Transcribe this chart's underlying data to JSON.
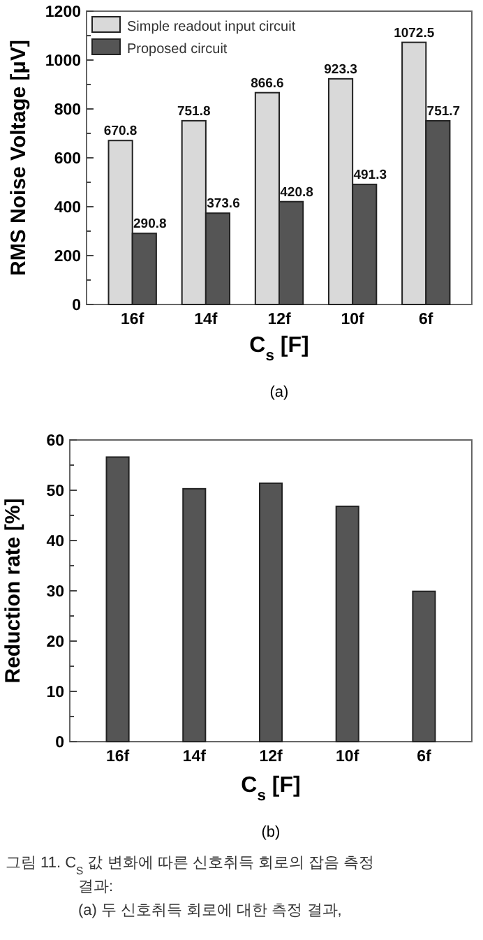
{
  "chart_data": [
    {
      "type": "bar",
      "xlabel": "C$_{s}$ [F]",
      "ylabel": "RMS Noise Voltage [μV]",
      "categories": [
        "16f",
        "14f",
        "12f",
        "10f",
        "6f"
      ],
      "series": [
        {
          "name": "Simple readout input circuit",
          "color": "#d9d9d9",
          "values": [
            670.8,
            751.8,
            866.6,
            923.3,
            1072.5
          ]
        },
        {
          "name": "Proposed circuit",
          "color": "#555555",
          "values": [
            290.8,
            373.6,
            420.8,
            491.3,
            751.7
          ]
        }
      ],
      "ylim": [
        0,
        1200
      ],
      "yticks": [
        0,
        {
          "value": 100,
          "label": null
        },
        200,
        {
          "value": 300,
          "label": null
        },
        400,
        {
          "value": 500,
          "label": null
        },
        600,
        {
          "value": 700,
          "label": null
        },
        800,
        {
          "value": 900,
          "label": null
        },
        1000,
        {
          "value": 1100,
          "label": null
        },
        1200
      ],
      "data_labels": true,
      "legend": "top left",
      "annotations": [
        "(a)"
      ]
    },
    {
      "type": "bar",
      "xlabel": "C$_{s}$ [F]",
      "ylabel": "Reduction rate [%]",
      "categories": [
        "16f",
        "14f",
        "12f",
        "10f",
        "6f"
      ],
      "values": [
        56.6,
        50.3,
        51.4,
        46.8,
        29.9
      ],
      "color": "#555555",
      "ylim": [
        0,
        60
      ],
      "yticks": [
        0,
        {
          "value": 5,
          "label": null
        },
        10,
        {
          "value": 15,
          "label": null
        },
        20,
        {
          "value": 25,
          "label": null
        },
        30,
        {
          "value": 35,
          "label": null
        },
        40,
        {
          "value": 45,
          "label": null
        },
        50,
        {
          "value": 55,
          "label": null
        },
        60
      ],
      "annotations": [
        "(b)",
        "그림 11. C$_{S}$ 값 변화에 따른 신호취득 회로의 잡음 측정",
        "결과:",
        "(a) 두 신호취득 회로에 대한 측정 결과,"
      ]
    }
  ]
}
